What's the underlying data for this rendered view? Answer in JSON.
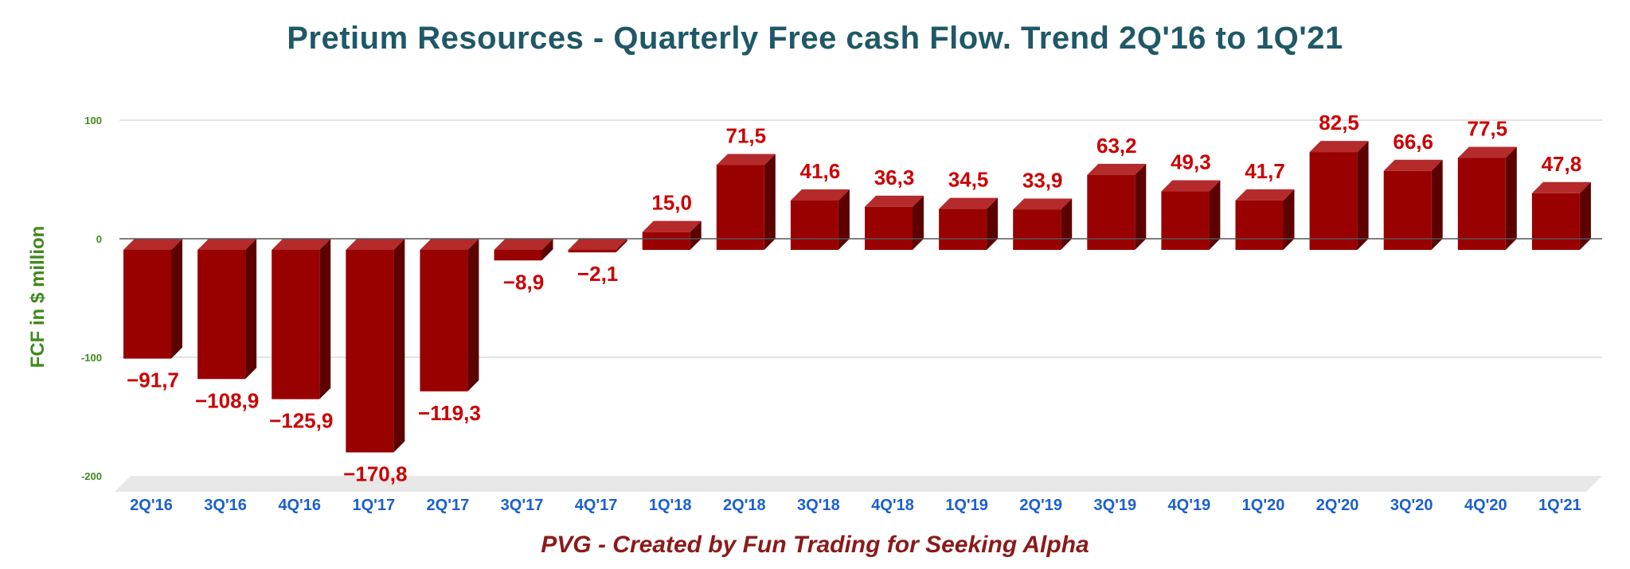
{
  "colors": {
    "title": "#1f5866",
    "ylabel": "#3f8a1c",
    "ytick": "#3f8a1c",
    "xtick": "#1a5fd0",
    "data_label": "#cc0000",
    "bar_front": "#990000",
    "bar_top": "#b52a2a",
    "bar_side": "#5c0000",
    "grid": "#d9d9d9",
    "zero_line": "#555555",
    "floor": "#e8e8e8",
    "footer": "#8b1a1a"
  },
  "footer": "PVG - Created by Fun Trading for Seeking Alpha",
  "chart_data": {
    "type": "bar",
    "title": "Pretium Resources  - Quarterly Free cash Flow. Trend 2Q'16 to 1Q'21",
    "xlabel": "",
    "ylabel": "FCF in $ million",
    "categories": [
      "2Q'16",
      "3Q'16",
      "4Q'16",
      "1Q'17",
      "2Q'17",
      "3Q'17",
      "4Q'17",
      "1Q'18",
      "2Q'18",
      "3Q'18",
      "4Q'18",
      "1Q'19",
      "2Q'19",
      "3Q'19",
      "4Q'19",
      "1Q'20",
      "2Q'20",
      "3Q'20",
      "4Q'20",
      "1Q'21"
    ],
    "values": [
      -91.7,
      -108.9,
      -125.9,
      -170.8,
      -119.3,
      -8.9,
      -2.1,
      15.0,
      71.5,
      41.6,
      36.3,
      34.5,
      33.9,
      63.2,
      49.3,
      41.7,
      82.5,
      66.6,
      77.5,
      47.8
    ],
    "value_labels": [
      "−91,7",
      "−108,9",
      "−125,9",
      "−170,8",
      "−119,3",
      "−8,9",
      "−2,1",
      "15,0",
      "71,5",
      "41,6",
      "36,3",
      "34,5",
      "33,9",
      "63,2",
      "49,3",
      "41,7",
      "82,5",
      "66,6",
      "77,5",
      "47,8"
    ],
    "yticks": [
      100,
      0,
      -100,
      -200
    ],
    "ylim": [
      -200,
      100
    ],
    "grid": true,
    "legend": "none",
    "style": "3d-bar"
  }
}
